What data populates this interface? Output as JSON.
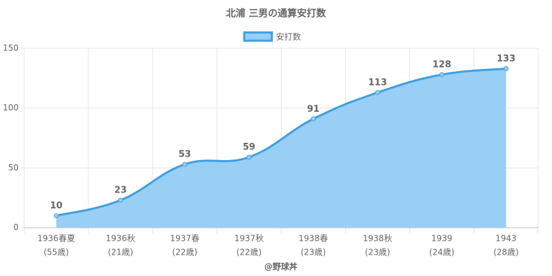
{
  "chart_data": {
    "type": "area",
    "title": "北浦 三男の通算安打数",
    "x_label": "@野球丼",
    "categories": [
      [
        "1936春夏",
        "(55歳)"
      ],
      [
        "1936秋",
        "(21歳)"
      ],
      [
        "1937春",
        "(22歳)"
      ],
      [
        "1937秋",
        "(22歳)"
      ],
      [
        "1938春",
        "(23歳)"
      ],
      [
        "1938秋",
        "(23歳)"
      ],
      [
        "1939",
        "(24歳)"
      ],
      [
        "1943",
        "(28歳)"
      ]
    ],
    "series": [
      {
        "name": "安打数",
        "color": "#3d9fe2",
        "fill": "#99cef5",
        "values": [
          10,
          23,
          53,
          59,
          91,
          113,
          128,
          133
        ]
      }
    ],
    "ylim": [
      0,
      150
    ],
    "yticks": [
      0,
      50,
      100,
      150
    ],
    "grid": true,
    "legend": "top"
  }
}
